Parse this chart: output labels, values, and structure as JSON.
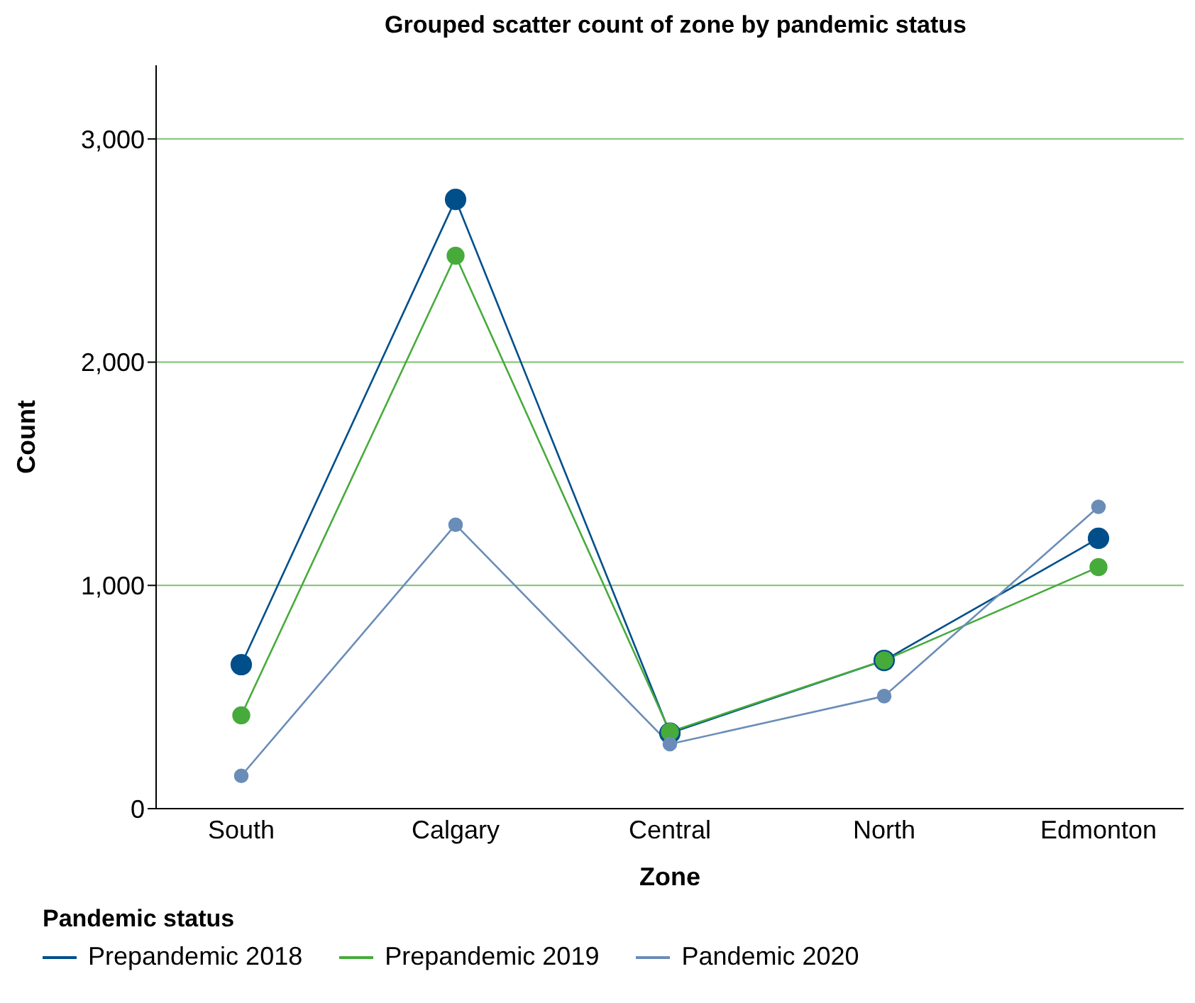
{
  "chart_data": {
    "type": "line",
    "title": "Grouped scatter count of zone by pandemic status",
    "xlabel": "Zone",
    "ylabel": "Count",
    "legend_title": "Pandemic status",
    "categories": [
      "South",
      "Calgary",
      "Central",
      "North",
      "Edmonton"
    ],
    "series": [
      {
        "name": "Prepandemic 2018",
        "color": "#004f8b",
        "values": [
          645,
          2729,
          338,
          664,
          1211
        ]
      },
      {
        "name": "Prepandemic 2019",
        "color": "#47ab3c",
        "values": [
          418,
          2477,
          344,
          664,
          1082
        ]
      },
      {
        "name": "Pandemic 2020",
        "color": "#6a8db8",
        "values": [
          147,
          1272,
          289,
          504,
          1352
        ]
      }
    ],
    "ylim": [
      0,
      3330
    ],
    "yticks": [
      {
        "value": 0,
        "label": "0"
      },
      {
        "value": 1000,
        "label": "1,000"
      },
      {
        "value": 2000,
        "label": "2,000"
      },
      {
        "value": 3000,
        "label": "3,000"
      }
    ],
    "grid": "y",
    "legend": "bottom left",
    "marker": "circle",
    "line_style": "solid"
  }
}
